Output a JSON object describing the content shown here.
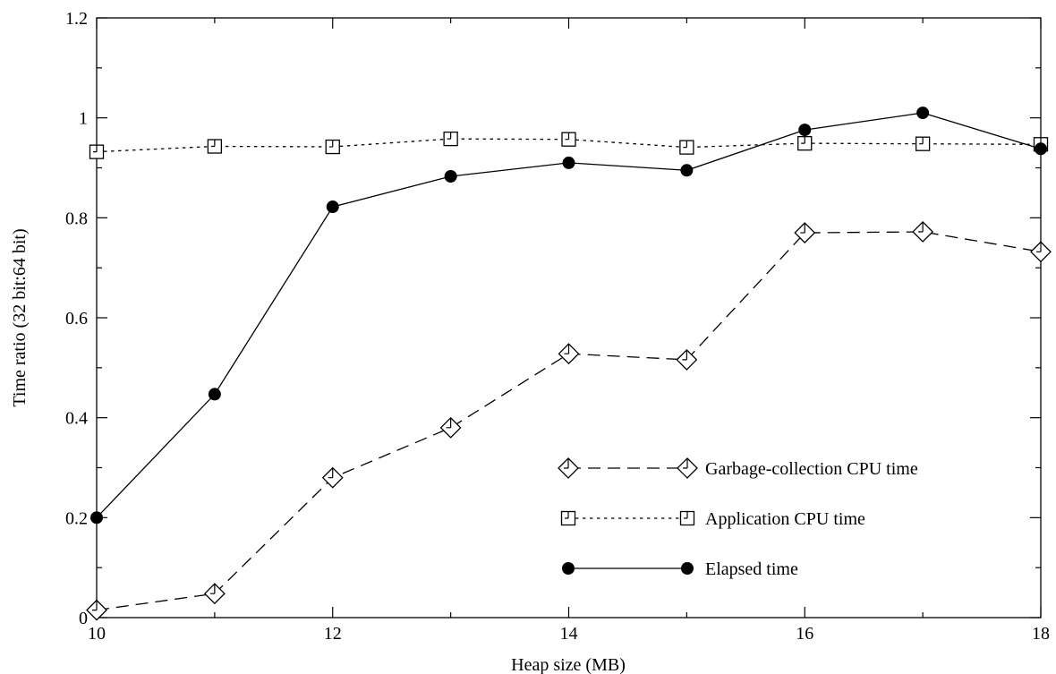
{
  "chart_data": {
    "type": "line",
    "title": "",
    "xlabel": "Heap size (MB)",
    "ylabel": "Time ratio (32 bit:64 bit)",
    "xlim": [
      10,
      18
    ],
    "ylim": [
      0,
      1.2
    ],
    "x_ticks": [
      10,
      12,
      14,
      16,
      18
    ],
    "x_tick_labels": [
      "10",
      "12",
      "14",
      "16",
      "18"
    ],
    "y_ticks": [
      0,
      0.2,
      0.4,
      0.6,
      0.8,
      1,
      1.2
    ],
    "y_tick_labels": [
      "0",
      "0.2",
      "0.4",
      "0.6",
      "0.8",
      "1",
      "1.2"
    ],
    "grid": false,
    "legend_position": "bottom-right",
    "x": [
      10,
      11,
      12,
      13,
      14,
      15,
      16,
      17,
      18
    ],
    "series": [
      {
        "name": "Garbage-collection CPU time",
        "marker": "diamond",
        "line_style": "dashed",
        "values": [
          0.015,
          0.048,
          0.28,
          0.38,
          0.528,
          0.516,
          0.77,
          0.772,
          0.732
        ]
      },
      {
        "name": "Application CPU time",
        "marker": "square",
        "line_style": "dotted",
        "values": [
          0.932,
          0.943,
          0.942,
          0.958,
          0.957,
          0.941,
          0.949,
          0.948,
          0.947
        ]
      },
      {
        "name": "Elapsed time",
        "marker": "filled-circle",
        "line_style": "solid",
        "values": [
          0.2,
          0.447,
          0.822,
          0.883,
          0.91,
          0.895,
          0.976,
          1.01,
          0.938
        ]
      }
    ]
  }
}
